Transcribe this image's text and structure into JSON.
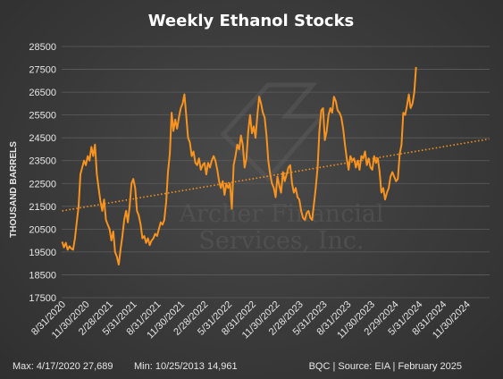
{
  "chart_data": {
    "type": "line",
    "title": "Weekly Ethanol Stocks",
    "ylabel": "THOUSAND BARRELS",
    "xlabel": "",
    "ylim": [
      17500,
      28500
    ],
    "yticks": [
      17500,
      18500,
      19500,
      20500,
      21500,
      22500,
      23500,
      24500,
      25500,
      26500,
      27500,
      28500
    ],
    "xlim": [
      "2020-08-31",
      "2025-02-28"
    ],
    "xticks": [
      "8/31/2020",
      "11/30/2020",
      "2/28/2021",
      "5/31/2021",
      "8/31/2021",
      "11/30/2021",
      "2/28/2022",
      "5/31/2022",
      "8/31/2022",
      "11/30/2022",
      "2/28/2023",
      "5/31/2023",
      "8/31/2023",
      "11/30/2023",
      "2/29/2024",
      "5/31/2024",
      "8/31/2024",
      "11/30/2024"
    ],
    "grid": true,
    "series": [
      {
        "name": "",
        "color": "#f7931e",
        "style": "solid",
        "points": [
          [
            "2020-09-02",
            19950
          ],
          [
            "2020-09-09",
            19700
          ],
          [
            "2020-09-16",
            19900
          ],
          [
            "2020-09-23",
            19600
          ],
          [
            "2020-09-30",
            19750
          ],
          [
            "2020-10-07",
            19650
          ],
          [
            "2020-10-14",
            19600
          ],
          [
            "2020-10-21",
            20100
          ],
          [
            "2020-10-28",
            20800
          ],
          [
            "2020-11-04",
            21500
          ],
          [
            "2020-11-11",
            22900
          ],
          [
            "2020-11-18",
            23200
          ],
          [
            "2020-11-25",
            23500
          ],
          [
            "2020-12-02",
            23300
          ],
          [
            "2020-12-09",
            23700
          ],
          [
            "2020-12-16",
            23500
          ],
          [
            "2020-12-23",
            24100
          ],
          [
            "2020-12-30",
            23700
          ],
          [
            "2021-01-06",
            24200
          ],
          [
            "2021-01-13",
            22900
          ],
          [
            "2021-01-20",
            22300
          ],
          [
            "2021-01-27",
            21700
          ],
          [
            "2021-02-03",
            21300
          ],
          [
            "2021-02-10",
            21800
          ],
          [
            "2021-02-17",
            20900
          ],
          [
            "2021-02-24",
            20700
          ],
          [
            "2021-03-03",
            20500
          ],
          [
            "2021-03-10",
            20000
          ],
          [
            "2021-03-17",
            20400
          ],
          [
            "2021-03-24",
            19500
          ],
          [
            "2021-03-31",
            19300
          ],
          [
            "2021-04-07",
            18950
          ],
          [
            "2021-04-14",
            19600
          ],
          [
            "2021-04-21",
            20200
          ],
          [
            "2021-04-28",
            20900
          ],
          [
            "2021-05-05",
            21300
          ],
          [
            "2021-05-12",
            20800
          ],
          [
            "2021-05-19",
            21500
          ],
          [
            "2021-05-26",
            22500
          ],
          [
            "2021-06-02",
            22700
          ],
          [
            "2021-06-09",
            22300
          ],
          [
            "2021-06-16",
            21300
          ],
          [
            "2021-06-23",
            21100
          ],
          [
            "2021-06-30",
            20700
          ],
          [
            "2021-07-07",
            20100
          ],
          [
            "2021-07-14",
            20200
          ],
          [
            "2021-07-21",
            19900
          ],
          [
            "2021-07-28",
            20100
          ],
          [
            "2021-08-04",
            19800
          ],
          [
            "2021-08-11",
            20000
          ],
          [
            "2021-08-18",
            20100
          ],
          [
            "2021-08-25",
            20300
          ],
          [
            "2021-09-01",
            20200
          ],
          [
            "2021-09-08",
            20500
          ],
          [
            "2021-09-15",
            20800
          ],
          [
            "2021-09-22",
            20700
          ],
          [
            "2021-09-29",
            20900
          ],
          [
            "2021-10-06",
            21700
          ],
          [
            "2021-10-13",
            23000
          ],
          [
            "2021-10-20",
            23800
          ],
          [
            "2021-10-27",
            25600
          ],
          [
            "2021-11-03",
            24800
          ],
          [
            "2021-11-10",
            25300
          ],
          [
            "2021-11-17",
            24900
          ],
          [
            "2021-11-24",
            25400
          ],
          [
            "2021-12-01",
            25800
          ],
          [
            "2021-12-08",
            26000
          ],
          [
            "2021-12-15",
            26400
          ],
          [
            "2021-12-22",
            25500
          ],
          [
            "2021-12-29",
            24500
          ],
          [
            "2022-01-05",
            24300
          ],
          [
            "2022-01-12",
            23700
          ],
          [
            "2022-01-19",
            23900
          ],
          [
            "2022-01-26",
            23400
          ],
          [
            "2022-02-02",
            23300
          ],
          [
            "2022-02-09",
            23600
          ],
          [
            "2022-02-16",
            23100
          ],
          [
            "2022-02-23",
            23300
          ],
          [
            "2022-03-02",
            23400
          ],
          [
            "2022-03-09",
            22900
          ],
          [
            "2022-03-16",
            23400
          ],
          [
            "2022-03-23",
            23200
          ],
          [
            "2022-03-30",
            23500
          ],
          [
            "2022-04-06",
            23700
          ],
          [
            "2022-04-13",
            23500
          ],
          [
            "2022-04-20",
            23100
          ],
          [
            "2022-04-27",
            22600
          ],
          [
            "2022-05-04",
            22300
          ],
          [
            "2022-05-11",
            22600
          ],
          [
            "2022-05-18",
            22000
          ],
          [
            "2022-05-25",
            22500
          ],
          [
            "2022-06-01",
            22300
          ],
          [
            "2022-06-08",
            22500
          ],
          [
            "2022-06-15",
            21400
          ],
          [
            "2022-06-22",
            23300
          ],
          [
            "2022-06-29",
            23700
          ],
          [
            "2022-07-06",
            24200
          ],
          [
            "2022-07-13",
            24000
          ],
          [
            "2022-07-20",
            24600
          ],
          [
            "2022-07-27",
            24200
          ],
          [
            "2022-08-03",
            23200
          ],
          [
            "2022-08-10",
            23600
          ],
          [
            "2022-08-17",
            24800
          ],
          [
            "2022-08-24",
            25500
          ],
          [
            "2022-08-31",
            24700
          ],
          [
            "2022-09-07",
            25000
          ],
          [
            "2022-09-14",
            24500
          ],
          [
            "2022-09-21",
            25500
          ],
          [
            "2022-09-28",
            26300
          ],
          [
            "2022-10-05",
            26000
          ],
          [
            "2022-10-12",
            25600
          ],
          [
            "2022-10-19",
            25400
          ],
          [
            "2022-10-26",
            24600
          ],
          [
            "2022-11-02",
            23500
          ],
          [
            "2022-11-09",
            22900
          ],
          [
            "2022-11-16",
            22500
          ],
          [
            "2022-11-23",
            22300
          ],
          [
            "2022-11-30",
            21900
          ],
          [
            "2022-12-07",
            22800
          ],
          [
            "2022-12-14",
            22400
          ],
          [
            "2022-12-21",
            22100
          ],
          [
            "2022-12-28",
            23000
          ],
          [
            "2023-01-04",
            22600
          ],
          [
            "2023-01-11",
            22900
          ],
          [
            "2023-01-18",
            23200
          ],
          [
            "2023-01-25",
            23300
          ],
          [
            "2023-02-01",
            22500
          ],
          [
            "2023-02-08",
            22100
          ],
          [
            "2023-02-15",
            22300
          ],
          [
            "2023-02-22",
            21900
          ],
          [
            "2023-03-01",
            21800
          ],
          [
            "2023-03-08",
            21300
          ],
          [
            "2023-03-15",
            21000
          ],
          [
            "2023-03-22",
            20900
          ],
          [
            "2023-03-29",
            21200
          ],
          [
            "2023-04-05",
            21300
          ],
          [
            "2023-04-12",
            21000
          ],
          [
            "2023-04-19",
            20900
          ],
          [
            "2023-04-26",
            21600
          ],
          [
            "2023-05-03",
            22300
          ],
          [
            "2023-05-10",
            23200
          ],
          [
            "2023-05-17",
            24800
          ],
          [
            "2023-05-24",
            25700
          ],
          [
            "2023-05-31",
            25800
          ],
          [
            "2023-06-07",
            24400
          ],
          [
            "2023-06-14",
            24800
          ],
          [
            "2023-06-21",
            25500
          ],
          [
            "2023-06-28",
            25800
          ],
          [
            "2023-07-05",
            25600
          ],
          [
            "2023-07-12",
            26300
          ],
          [
            "2023-07-19",
            26100
          ],
          [
            "2023-07-26",
            25700
          ],
          [
            "2023-08-02",
            25600
          ],
          [
            "2023-08-09",
            25400
          ],
          [
            "2023-08-16",
            24900
          ],
          [
            "2023-08-23",
            24200
          ],
          [
            "2023-08-30",
            23600
          ],
          [
            "2023-09-06",
            23100
          ],
          [
            "2023-09-13",
            23700
          ],
          [
            "2023-09-20",
            23500
          ],
          [
            "2023-09-27",
            23600
          ],
          [
            "2023-10-04",
            23200
          ],
          [
            "2023-10-11",
            23500
          ],
          [
            "2023-10-18",
            23100
          ],
          [
            "2023-10-25",
            23700
          ],
          [
            "2023-11-01",
            23600
          ],
          [
            "2023-11-08",
            23900
          ],
          [
            "2023-11-15",
            23300
          ],
          [
            "2023-11-22",
            23600
          ],
          [
            "2023-11-29",
            23200
          ],
          [
            "2023-12-06",
            23100
          ],
          [
            "2023-12-13",
            23700
          ],
          [
            "2023-12-20",
            23400
          ],
          [
            "2023-12-27",
            23600
          ],
          [
            "2024-01-03",
            23000
          ],
          [
            "2024-01-10",
            22100
          ],
          [
            "2024-01-17",
            22300
          ],
          [
            "2024-01-24",
            21800
          ],
          [
            "2024-01-31",
            22100
          ],
          [
            "2024-02-07",
            22300
          ],
          [
            "2024-02-14",
            22800
          ],
          [
            "2024-02-21",
            23000
          ],
          [
            "2024-02-28",
            22800
          ],
          [
            "2024-03-06",
            22600
          ],
          [
            "2024-03-13",
            22700
          ],
          [
            "2024-03-20",
            23800
          ],
          [
            "2024-03-27",
            24200
          ],
          [
            "2024-04-03",
            25600
          ],
          [
            "2024-04-10",
            25500
          ],
          [
            "2024-04-17",
            25900
          ],
          [
            "2024-04-24",
            26400
          ],
          [
            "2024-05-01",
            25800
          ],
          [
            "2024-05-08",
            26000
          ],
          [
            "2024-05-15",
            26500
          ],
          [
            "2024-05-22",
            27600
          ]
        ]
      },
      {
        "name": "",
        "color": "#f7931e",
        "style": "dotted",
        "points": [
          [
            "2020-09-02",
            21300
          ],
          [
            "2025-02-26",
            24450
          ]
        ]
      }
    ]
  },
  "annotations": {
    "footer_left": "Max: 4/17/2020  27,689",
    "footer_mid": "Min: 10/25/2013  14,961",
    "footer_right": "BQC | Source: EIA | February 2025",
    "watermark_line1": "Archer Financial",
    "watermark_line2": "Services, Inc."
  }
}
